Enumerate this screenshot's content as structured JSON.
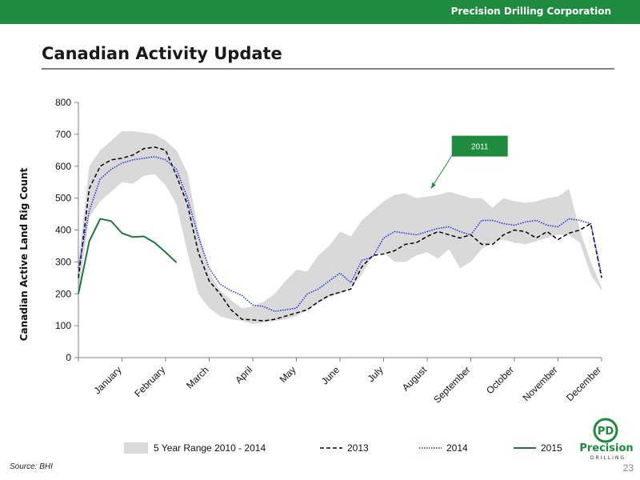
{
  "header": {
    "company": "Precision Drilling Corporation"
  },
  "page": {
    "title": "Canadian Activity Update",
    "source": "Source: BHI",
    "page_number": "23"
  },
  "logo": {
    "word": "Precision",
    "sub": "DRILLING"
  },
  "colors": {
    "brand_green": "#1f8b3f",
    "range_fill": "#d9d9d9",
    "series_2013": "#000000",
    "series_2014": "#1f2fe0",
    "series_2015": "#1f7a3a"
  },
  "chart_data": {
    "type": "line",
    "ylabel": "Canadian Active Land Rig Count",
    "xlabel": "",
    "ylim": [
      0,
      800
    ],
    "yticks": [
      0,
      100,
      200,
      300,
      400,
      500,
      600,
      700,
      800
    ],
    "x_range": [
      0,
      12
    ],
    "xtick_labels": [
      "January",
      "February",
      "March",
      "April",
      "May",
      "June",
      "July",
      "August",
      "September",
      "October",
      "November",
      "December"
    ],
    "grid": false,
    "legend_position": "bottom",
    "range_band": {
      "name": "5 Year Range 2010 - 2014",
      "x": [
        0.0,
        0.25,
        0.5,
        0.75,
        1.0,
        1.25,
        1.5,
        1.75,
        2.0,
        2.25,
        2.5,
        2.75,
        3.0,
        3.25,
        3.5,
        3.75,
        4.0,
        4.25,
        4.5,
        4.75,
        5.0,
        5.25,
        5.5,
        5.75,
        6.0,
        6.25,
        6.5,
        6.75,
        7.0,
        7.25,
        7.5,
        7.75,
        8.0,
        8.25,
        8.5,
        8.75,
        9.0,
        9.25,
        9.5,
        9.75,
        10.0,
        10.25,
        10.5,
        10.75,
        11.0,
        11.25,
        11.5,
        11.75,
        12.0
      ],
      "high": [
        300,
        600,
        650,
        680,
        710,
        710,
        705,
        700,
        680,
        650,
        580,
        400,
        270,
        210,
        180,
        155,
        160,
        175,
        200,
        240,
        275,
        270,
        320,
        350,
        395,
        380,
        430,
        460,
        490,
        510,
        515,
        500,
        505,
        510,
        520,
        510,
        500,
        500,
        470,
        500,
        490,
        485,
        490,
        500,
        505,
        530,
        400,
        300,
        220
      ],
      "low": [
        200,
        440,
        490,
        520,
        550,
        545,
        570,
        575,
        540,
        480,
        330,
        200,
        155,
        130,
        120,
        115,
        105,
        110,
        115,
        120,
        130,
        150,
        170,
        190,
        200,
        220,
        260,
        320,
        330,
        300,
        300,
        320,
        330,
        310,
        340,
        280,
        300,
        340,
        360,
        370,
        360,
        355,
        365,
        375,
        385,
        385,
        360,
        260,
        210
      ]
    },
    "series": [
      {
        "name": "2013",
        "style": "dashed",
        "x": [
          0.0,
          0.25,
          0.5,
          0.75,
          1.0,
          1.25,
          1.5,
          1.75,
          2.0,
          2.25,
          2.5,
          2.75,
          3.0,
          3.25,
          3.5,
          3.75,
          4.0,
          4.25,
          4.5,
          4.75,
          5.0,
          5.25,
          5.5,
          5.75,
          6.0,
          6.25,
          6.5,
          6.75,
          7.0,
          7.25,
          7.5,
          7.75,
          8.0,
          8.25,
          8.5,
          8.75,
          9.0,
          9.25,
          9.5,
          9.75,
          10.0,
          10.25,
          10.5,
          10.75,
          11.0,
          11.25,
          11.5,
          11.75,
          12.0
        ],
        "values": [
          250,
          530,
          600,
          620,
          625,
          635,
          655,
          660,
          650,
          570,
          480,
          330,
          240,
          200,
          150,
          120,
          118,
          115,
          120,
          130,
          140,
          150,
          175,
          195,
          205,
          215,
          285,
          320,
          325,
          335,
          355,
          360,
          380,
          395,
          385,
          375,
          385,
          355,
          355,
          385,
          400,
          395,
          375,
          395,
          370,
          390,
          400,
          420,
          250
        ]
      },
      {
        "name": "2014",
        "style": "dotted",
        "x": [
          0.0,
          0.25,
          0.5,
          0.75,
          1.0,
          1.25,
          1.5,
          1.75,
          2.0,
          2.25,
          2.5,
          2.75,
          3.0,
          3.25,
          3.5,
          3.75,
          4.0,
          4.25,
          4.5,
          4.75,
          5.0,
          5.25,
          5.5,
          5.75,
          6.0,
          6.25,
          6.5,
          6.75,
          7.0,
          7.25,
          7.5,
          7.75,
          8.0,
          8.25,
          8.5,
          8.75,
          9.0,
          9.25,
          9.5,
          9.75,
          10.0,
          10.25,
          10.5,
          10.75,
          11.0,
          11.25,
          11.5,
          11.75,
          12.0
        ],
        "values": [
          280,
          460,
          560,
          590,
          610,
          620,
          625,
          630,
          620,
          590,
          500,
          380,
          280,
          230,
          210,
          195,
          165,
          160,
          145,
          150,
          155,
          200,
          215,
          240,
          265,
          235,
          305,
          315,
          375,
          395,
          390,
          385,
          395,
          405,
          410,
          395,
          385,
          430,
          430,
          420,
          415,
          425,
          430,
          415,
          410,
          435,
          430,
          420,
          260
        ]
      },
      {
        "name": "2015",
        "style": "solid",
        "x": [
          0.0,
          0.25,
          0.5,
          0.75,
          1.0,
          1.25,
          1.5,
          1.75,
          2.0,
          2.25
        ],
        "values": [
          200,
          365,
          435,
          428,
          390,
          378,
          380,
          360,
          330,
          298
        ]
      }
    ],
    "annotations": [
      {
        "text": "2011",
        "x": 8.05,
        "y": 515
      }
    ]
  }
}
